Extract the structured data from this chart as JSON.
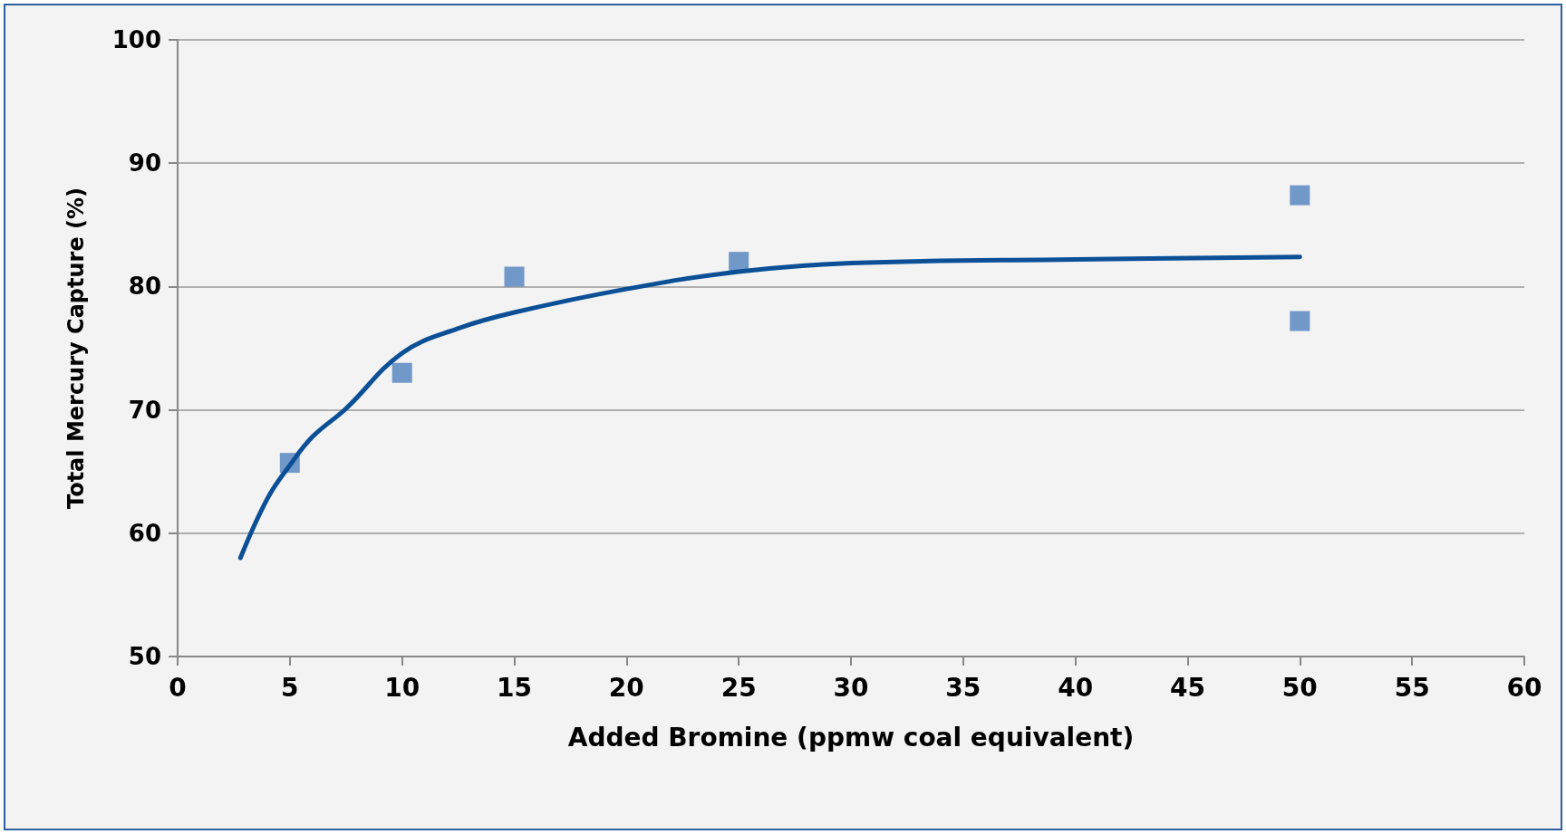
{
  "chart_data": {
    "type": "scatter",
    "xlabel": "Added Bromine (ppmw coal equivalent)",
    "ylabel": "Total Mercury Capture (%)",
    "xlim": [
      0,
      60
    ],
    "xticks": [
      0,
      5,
      10,
      15,
      20,
      25,
      30,
      35,
      40,
      45,
      50,
      55,
      60
    ],
    "ylim": [
      50,
      100
    ],
    "yticks": [
      50,
      60,
      70,
      80,
      90,
      100
    ],
    "grid": "y",
    "series": [
      {
        "marker": "square",
        "color": "#4f81bd",
        "x": [
          5,
          10,
          15,
          25,
          50,
          50
        ],
        "values": [
          65.7,
          73.0,
          80.8,
          82.0,
          87.4,
          77.2
        ]
      },
      {
        "type": "line",
        "marker": "none",
        "line_style": "solid",
        "color": "#0b4f96",
        "x": [
          2.8,
          4,
          5,
          6,
          7.5,
          10,
          12.5,
          15,
          20,
          25,
          30,
          40,
          50
        ],
        "values": [
          58.0,
          62.8,
          65.5,
          67.8,
          70.1,
          74.6,
          76.6,
          77.9,
          79.8,
          81.2,
          81.9,
          82.2,
          82.4
        ]
      }
    ]
  }
}
